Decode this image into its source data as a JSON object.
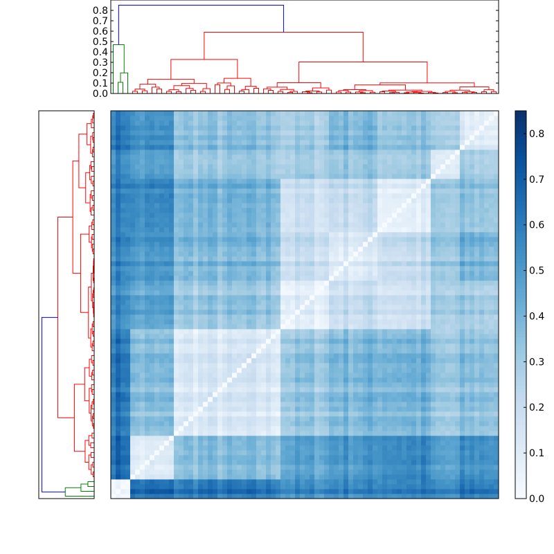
{
  "chart_data": [
    {
      "type": "dendrogram",
      "orientation": "top",
      "ylim": [
        0.0,
        0.9
      ],
      "y_ticks": [
        0.0,
        0.1,
        0.2,
        0.3,
        0.4,
        0.5,
        0.6,
        0.7,
        0.8
      ],
      "y_tick_labels": [
        "0.0",
        "0.1",
        "0.2",
        "0.3",
        "0.4",
        "0.5",
        "0.6",
        "0.7",
        "0.8"
      ],
      "leaf_count": 80,
      "clusters": [
        {
          "color": "#008000",
          "leaves": [
            0,
            4
          ],
          "merge_height": 0.47
        },
        {
          "color": "#ff0000",
          "leaves": [
            4,
            80
          ],
          "merge_height": 0.59
        },
        {
          "color": "#0000ff",
          "join_height": 0.85
        }
      ]
    },
    {
      "type": "dendrogram",
      "orientation": "left",
      "leaf_count": 80,
      "clusters": [
        {
          "color": "#008000",
          "leaves": [
            0,
            4
          ]
        },
        {
          "color": "#ff0000",
          "leaves": [
            4,
            80
          ]
        },
        {
          "color": "#0000ff"
        }
      ]
    },
    {
      "type": "heatmap",
      "rows": 80,
      "cols": 80,
      "colormap": "Blues",
      "vmin": 0.0,
      "vmax": 0.85,
      "block_boundaries": [
        0,
        4,
        13,
        35,
        45,
        55,
        66,
        72,
        80
      ],
      "block_means": [
        [
          0.04,
          0.65,
          0.62,
          0.55,
          0.58,
          0.6,
          0.55,
          0.62
        ],
        [
          0.65,
          0.08,
          0.35,
          0.45,
          0.5,
          0.55,
          0.45,
          0.52
        ],
        [
          0.62,
          0.35,
          0.12,
          0.32,
          0.38,
          0.4,
          0.3,
          0.35
        ],
        [
          0.55,
          0.45,
          0.32,
          0.08,
          0.2,
          0.18,
          0.28,
          0.3
        ],
        [
          0.58,
          0.5,
          0.38,
          0.2,
          0.12,
          0.22,
          0.32,
          0.4
        ],
        [
          0.6,
          0.55,
          0.4,
          0.18,
          0.22,
          0.1,
          0.3,
          0.35
        ],
        [
          0.55,
          0.45,
          0.3,
          0.28,
          0.32,
          0.3,
          0.08,
          0.28
        ],
        [
          0.62,
          0.52,
          0.35,
          0.3,
          0.4,
          0.35,
          0.28,
          0.1
        ]
      ],
      "diagonal": 0.0
    },
    {
      "type": "colorbar",
      "colormap": "Blues",
      "range": [
        0.0,
        0.85
      ],
      "ticks": [
        0.0,
        0.1,
        0.2,
        0.3,
        0.4,
        0.5,
        0.6,
        0.7,
        0.8
      ],
      "tick_labels": [
        "0.0",
        "0.1",
        "0.2",
        "0.3",
        "0.4",
        "0.5",
        "0.6",
        "0.7",
        "0.8"
      ]
    }
  ]
}
